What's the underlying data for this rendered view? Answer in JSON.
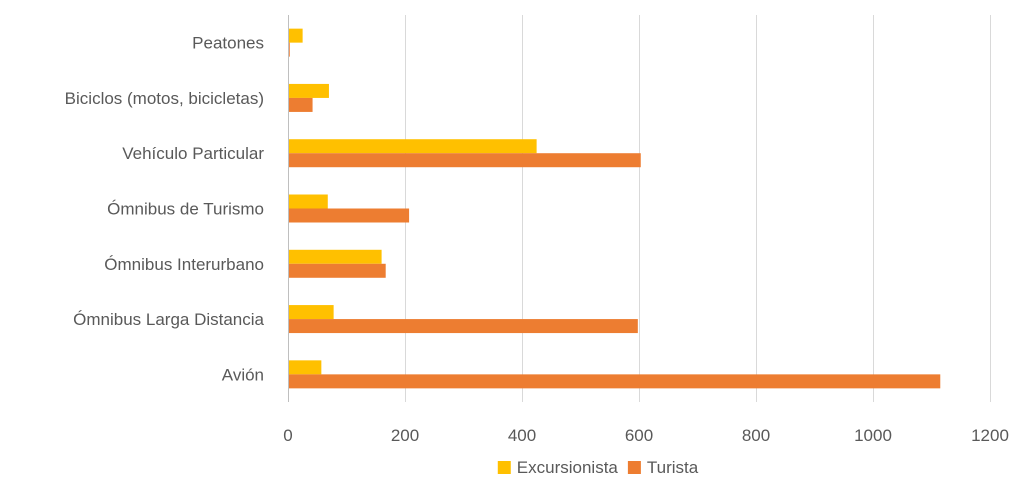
{
  "chart_data": {
    "type": "bar",
    "orientation": "horizontal",
    "title": "",
    "xlabel": "",
    "ylabel": "",
    "categories": [
      "Peatones",
      "Biciclos (motos, bicicletas)",
      "Vehículo Particular",
      "Ómnibus de Turismo",
      "Ómnibus Interurbano",
      "Ómnibus Larga Distancia",
      "Avión"
    ],
    "series": [
      {
        "name": "Excursionista",
        "color": "#FFC000",
        "values": [
          25,
          70,
          425,
          68,
          160,
          78,
          57
        ]
      },
      {
        "name": "Turista",
        "color": "#ED7D31",
        "values": [
          3,
          42,
          603,
          207,
          167,
          598,
          1115
        ]
      }
    ],
    "xlim": [
      0,
      1200
    ],
    "xticks": [
      0,
      200,
      400,
      600,
      800,
      1000,
      1200
    ],
    "grid": true,
    "legend_position": "bottom"
  }
}
